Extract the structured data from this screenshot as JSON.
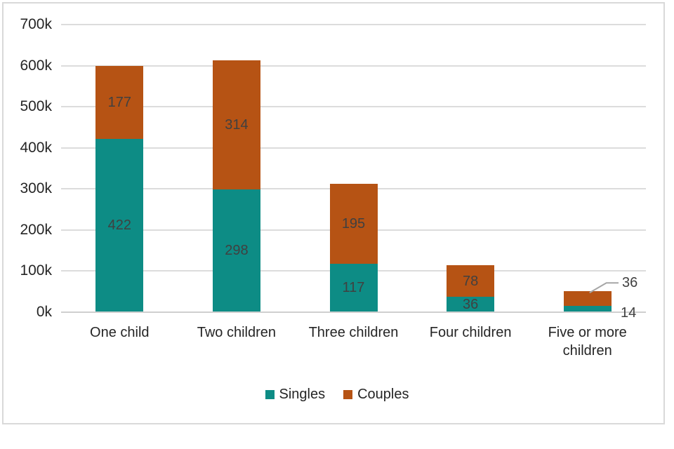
{
  "chart_data": {
    "type": "bar",
    "stacked": true,
    "title": "",
    "categories": [
      "One child",
      "Two children",
      "Three children",
      "Four children",
      "Five or more children"
    ],
    "series": [
      {
        "name": "Singles",
        "color": "#0d8c85",
        "values": [
          422,
          298,
          117,
          36,
          14
        ]
      },
      {
        "name": "Couples",
        "color": "#b65314",
        "values": [
          177,
          314,
          195,
          78,
          36
        ]
      }
    ],
    "value_scale": "thousands",
    "ylim": [
      0,
      700
    ],
    "ytick_values": [
      0,
      100,
      200,
      300,
      400,
      500,
      600,
      700
    ],
    "ytick_labels": [
      "0k",
      "100k",
      "200k",
      "300k",
      "400k",
      "500k",
      "600k",
      "700k"
    ],
    "grid": true,
    "legend_position": "bottom",
    "legend": [
      "Singles",
      "Couples"
    ],
    "data_label_style": "inside-center",
    "outside_labeled_category": "Five or more children",
    "outside_labels": {
      "couples": "36",
      "singles": "14"
    }
  },
  "colors": {
    "singles": "#0d8c85",
    "couples": "#b65314",
    "gridline": "#dcdcdc",
    "axis_line": "#cfcfcf",
    "data_label": "#404040",
    "text": "#252525",
    "leader_line": "#a6a6a6",
    "frame_border": "#d9d9d9",
    "background": "#ffffff"
  }
}
